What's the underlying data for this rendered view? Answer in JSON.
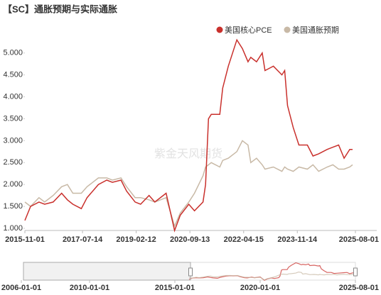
{
  "chart_data": {
    "type": "line",
    "title": "【SC】通胀预期与实际通胀",
    "watermark": "紫金天风期货",
    "legend": "top-right",
    "grid": false,
    "x": [
      "2015-11-01",
      "2016-01-01",
      "2016-04-01",
      "2016-06-01",
      "2016-09-01",
      "2016-12-01",
      "2017-02-01",
      "2017-04-01",
      "2017-07-01",
      "2017-09-01",
      "2018-01-01",
      "2018-04-01",
      "2018-06-01",
      "2018-09-01",
      "2018-11-01",
      "2019-02-01",
      "2019-04-01",
      "2019-07-01",
      "2019-09-01",
      "2020-01-01",
      "2020-04-01",
      "2020-06-01",
      "2020-09-01",
      "2020-11-01",
      "2021-02-01",
      "2021-03-01",
      "2021-04-01",
      "2021-05-01",
      "2021-08-01",
      "2021-09-01",
      "2021-11-01",
      "2022-02-01",
      "2022-04-01",
      "2022-06-01",
      "2022-07-01",
      "2022-09-01",
      "2022-11-01",
      "2022-12-01",
      "2023-03-01",
      "2023-06-01",
      "2023-07-01",
      "2023-08-01",
      "2023-10-01",
      "2023-12-01",
      "2024-03-01",
      "2024-05-01",
      "2024-07-01",
      "2024-10-01",
      "2024-12-01",
      "2025-02-01",
      "2025-04-01",
      "2025-06-01",
      "2025-07-01"
    ],
    "series": [
      {
        "name": "美国核心PCE",
        "color": "#c9302c",
        "values": [
          1.18,
          1.5,
          1.6,
          1.55,
          1.6,
          1.8,
          1.65,
          1.55,
          1.45,
          1.7,
          2.0,
          2.1,
          2.05,
          2.1,
          1.85,
          1.6,
          1.55,
          1.75,
          1.6,
          1.8,
          0.95,
          1.3,
          1.55,
          1.4,
          1.6,
          2.0,
          3.5,
          3.6,
          3.6,
          4.2,
          4.7,
          5.3,
          5.1,
          4.8,
          4.9,
          4.8,
          5.0,
          4.6,
          4.7,
          4.5,
          4.6,
          3.8,
          3.3,
          2.9,
          2.9,
          2.65,
          2.7,
          2.8,
          2.85,
          2.9,
          2.6,
          2.8,
          2.8
        ]
      },
      {
        "name": "美国通胀预期",
        "color": "#c8b9a6",
        "values": [
          1.6,
          1.5,
          1.7,
          1.6,
          1.75,
          1.95,
          2.0,
          1.8,
          1.8,
          1.95,
          2.15,
          2.15,
          2.1,
          2.15,
          1.95,
          1.7,
          1.7,
          1.65,
          1.6,
          1.7,
          1.05,
          1.35,
          1.6,
          1.8,
          2.2,
          2.4,
          2.45,
          2.5,
          2.4,
          2.55,
          2.6,
          2.75,
          3.0,
          2.9,
          2.5,
          2.6,
          2.45,
          2.35,
          2.4,
          2.3,
          2.4,
          2.35,
          2.3,
          2.4,
          2.35,
          2.45,
          2.3,
          2.4,
          2.45,
          2.35,
          2.35,
          2.4,
          2.45
        ]
      }
    ],
    "xlim": [
      "2015-11-01",
      "2025-08-01"
    ],
    "xticks": [
      "2015-11-01",
      "2017-07-14",
      "2019-02-12",
      "2020-09-13",
      "2022-04-15",
      "2023-11-14",
      "2025-08-01"
    ],
    "ylim": [
      1,
      5.4
    ],
    "yticks": [
      {
        "value": 1,
        "label": "1.000"
      },
      {
        "value": 1.5,
        "label": "1.500"
      },
      {
        "value": 2,
        "label": "2.000"
      },
      {
        "value": 2.5,
        "label": "2.500"
      },
      {
        "value": 3,
        "label": "3.000"
      },
      {
        "value": 3.5,
        "label": "3.500"
      },
      {
        "value": 4,
        "label": "4.000"
      },
      {
        "value": 4.5,
        "label": "4.500"
      },
      {
        "value": 5,
        "label": "5.000"
      }
    ],
    "navigator": {
      "xlim": [
        "2006-01-01",
        "2025-08-01"
      ],
      "xticks": [
        "2006-01-01",
        "2010-01-01",
        "2015-01-01",
        "2020-01-01",
        "2025-08-01"
      ]
    }
  }
}
